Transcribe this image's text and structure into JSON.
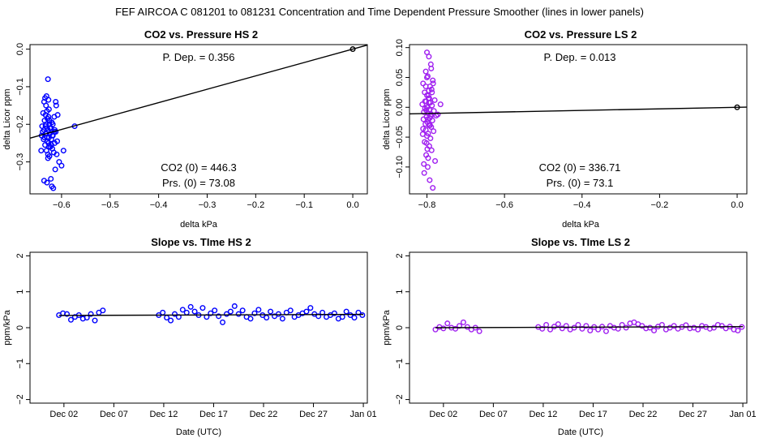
{
  "suptitle": "FEF   AIRCOA C   081201 to 081231   Concentration and Time Dependent Pressure Smoother (lines in lower panels)",
  "colors": {
    "hs": "#0000ff",
    "ls": "#a020f0",
    "axis": "#000000",
    "line": "#000000"
  },
  "chart_data": [
    {
      "id": "p1",
      "type": "scatter",
      "title": "CO2 vs. Pressure HS 2",
      "xlabel": "delta kPa",
      "ylabel": "delta Licor ppm",
      "xlim": [
        -0.665,
        0.03
      ],
      "ylim": [
        -0.385,
        0.012
      ],
      "xticks": [
        -0.6,
        -0.5,
        -0.4,
        -0.3,
        -0.2,
        -0.1,
        0.0
      ],
      "xtick_labels": [
        "−0.6",
        "−0.5",
        "−0.4",
        "−0.3",
        "−0.2",
        "−0.1",
        "0.0"
      ],
      "yticks": [
        -0.3,
        -0.2,
        -0.1,
        0.0
      ],
      "ytick_labels": [
        "−0.3",
        "−0.2",
        "−0.1",
        "0.0"
      ],
      "annotations": {
        "pdep": "P. Dep. =  0.356",
        "co2_0": "CO2 (0) =  446.3",
        "prs_0": "Prs. (0) = 73.08"
      },
      "fit_line": {
        "x": [
          -0.665,
          0.03
        ],
        "y": [
          -0.2367,
          0.0107
        ]
      },
      "ref_point": {
        "x": 0.0,
        "y": 0.0
      },
      "series_color": "hs",
      "points": {
        "x": [
          -0.628,
          -0.631,
          -0.634,
          -0.636,
          -0.632,
          -0.626,
          -0.63,
          -0.638,
          -0.633,
          -0.627,
          -0.629,
          -0.635,
          -0.62,
          -0.618,
          -0.625,
          -0.64,
          -0.622,
          -0.63,
          -0.628,
          -0.636,
          -0.615,
          -0.612,
          -0.624,
          -0.633,
          -0.641,
          -0.618,
          -0.626,
          -0.63,
          -0.621,
          -0.637,
          -0.609,
          -0.614,
          -0.627,
          -0.634,
          -0.623,
          -0.619,
          -0.631,
          -0.642,
          -0.616,
          -0.61,
          -0.625,
          -0.628,
          -0.605,
          -0.6,
          -0.613,
          -0.622,
          -0.636,
          -0.63,
          -0.62,
          -0.617,
          -0.632,
          -0.624,
          -0.611,
          -0.627,
          -0.639,
          -0.615,
          -0.626,
          -0.619,
          -0.629,
          -0.633,
          -0.612,
          -0.608,
          -0.573,
          -0.596,
          -0.625,
          -0.614,
          -0.631,
          -0.621,
          -0.635,
          -0.628
        ],
        "y": [
          -0.08,
          -0.125,
          -0.13,
          -0.14,
          -0.15,
          -0.16,
          -0.165,
          -0.17,
          -0.175,
          -0.18,
          -0.185,
          -0.19,
          -0.195,
          -0.2,
          -0.2,
          -0.205,
          -0.21,
          -0.21,
          -0.215,
          -0.215,
          -0.22,
          -0.22,
          -0.225,
          -0.225,
          -0.23,
          -0.23,
          -0.235,
          -0.235,
          -0.24,
          -0.24,
          -0.245,
          -0.25,
          -0.25,
          -0.255,
          -0.26,
          -0.265,
          -0.27,
          -0.27,
          -0.275,
          -0.28,
          -0.285,
          -0.29,
          -0.3,
          -0.31,
          -0.32,
          -0.345,
          -0.35,
          -0.355,
          -0.365,
          -0.37,
          -0.2,
          -0.21,
          -0.15,
          -0.135,
          -0.22,
          -0.18,
          -0.26,
          -0.23,
          -0.245,
          -0.205,
          -0.14,
          -0.175,
          -0.205,
          -0.27,
          -0.19,
          -0.215,
          -0.225,
          -0.255,
          -0.235,
          -0.28
        ]
      }
    },
    {
      "id": "p2",
      "type": "scatter",
      "title": "CO2 vs. Pressure LS 2",
      "xlabel": "delta kPa",
      "ylabel": "delta Licor ppm",
      "xlim": [
        -0.845,
        0.025
      ],
      "ylim": [
        -0.145,
        0.105
      ],
      "xticks": [
        -0.8,
        -0.6,
        -0.4,
        -0.2,
        0.0
      ],
      "xtick_labels": [
        "−0.8",
        "−0.6",
        "−0.4",
        "−0.2",
        "0.0"
      ],
      "yticks": [
        -0.1,
        -0.05,
        0.0,
        0.05,
        0.1
      ],
      "ytick_labels": [
        "−0.10",
        "−0.05",
        "0.00",
        "0.05",
        "0.10"
      ],
      "annotations": {
        "pdep": "P. Dep. =  0.013",
        "co2_0": "CO2 (0) =  336.71",
        "prs_0": "Prs. (0) = 73.1"
      },
      "fit_line": {
        "x": [
          -0.845,
          0.025
        ],
        "y": [
          -0.011,
          0.0003
        ]
      },
      "ref_point": {
        "x": 0.0,
        "y": 0.0
      },
      "series_color": "ls",
      "points": {
        "x": [
          -0.8,
          -0.795,
          -0.79,
          -0.803,
          -0.798,
          -0.785,
          -0.81,
          -0.792,
          -0.788,
          -0.806,
          -0.8,
          -0.796,
          -0.78,
          -0.802,
          -0.791,
          -0.812,
          -0.787,
          -0.799,
          -0.805,
          -0.794,
          -0.782,
          -0.808,
          -0.797,
          -0.79,
          -0.776,
          -0.801,
          -0.793,
          -0.809,
          -0.786,
          -0.799,
          -0.804,
          -0.795,
          -0.789,
          -0.81,
          -0.783,
          -0.797,
          -0.8,
          -0.791,
          -0.806,
          -0.794,
          -0.788,
          -0.802,
          -0.779,
          -0.798,
          -0.807,
          -0.793,
          -0.785,
          -0.8,
          -0.803,
          -0.796,
          -0.79,
          -0.811,
          -0.799,
          -0.787,
          -0.795,
          -0.802,
          -0.792,
          -0.805,
          -0.798,
          -0.784,
          -0.801,
          -0.794,
          -0.808,
          -0.789,
          -0.797,
          -0.8,
          -0.765,
          -0.772,
          -0.795,
          -0.803
        ],
        "y": [
          0.092,
          0.085,
          0.072,
          0.06,
          0.052,
          0.045,
          0.04,
          0.035,
          0.03,
          0.025,
          0.02,
          0.015,
          0.012,
          0.01,
          0.008,
          0.005,
          0.003,
          0.0,
          -0.002,
          -0.004,
          -0.006,
          -0.008,
          -0.01,
          -0.012,
          -0.014,
          -0.016,
          -0.018,
          -0.02,
          -0.022,
          -0.025,
          -0.028,
          -0.03,
          -0.033,
          -0.036,
          -0.04,
          -0.044,
          -0.048,
          -0.052,
          -0.058,
          -0.065,
          -0.072,
          -0.08,
          -0.09,
          -0.1,
          -0.11,
          -0.122,
          -0.135,
          0.05,
          0.035,
          0.02,
          -0.015,
          -0.045,
          -0.07,
          0.025,
          0.008,
          -0.005,
          -0.03,
          0.01,
          -0.02,
          0.04,
          -0.06,
          0.015,
          -0.095,
          0.065,
          -0.085,
          0.0,
          0.005,
          -0.012,
          0.028,
          -0.038
        ]
      }
    },
    {
      "id": "p3",
      "type": "scatter",
      "title": "Slope vs. TIme HS 2",
      "xlabel": "Date (UTC)",
      "ylabel": "ppm/kPa",
      "xlim": [
        -2.4,
        31.4
      ],
      "ylim": [
        -2.1,
        2.1
      ],
      "xticks": [
        1,
        6,
        11,
        16,
        21,
        26,
        31
      ],
      "xtick_labels": [
        "Dec 02",
        "Dec 07",
        "Dec 12",
        "Dec 17",
        "Dec 22",
        "Dec 27",
        "Jan 01"
      ],
      "yticks": [
        -2,
        -1,
        0,
        1,
        2
      ],
      "ytick_labels": [
        "−2",
        "−1",
        "0",
        "1",
        "2"
      ],
      "smoother_line": {
        "x": [
          0.5,
          31.0
        ],
        "y": [
          0.34,
          0.37
        ]
      },
      "series_color": "hs",
      "points": {
        "x": [
          0.5,
          0.9,
          1.3,
          1.7,
          2.1,
          2.5,
          2.9,
          3.3,
          3.7,
          4.1,
          4.5,
          4.9,
          10.5,
          10.9,
          11.3,
          11.7,
          12.1,
          12.5,
          12.9,
          13.3,
          13.7,
          14.1,
          14.5,
          14.9,
          15.3,
          15.7,
          16.1,
          16.5,
          16.9,
          17.3,
          17.7,
          18.1,
          18.5,
          18.9,
          19.3,
          19.7,
          20.1,
          20.5,
          20.9,
          21.3,
          21.7,
          22.1,
          22.5,
          22.9,
          23.3,
          23.7,
          24.1,
          24.5,
          24.9,
          25.3,
          25.7,
          26.1,
          26.5,
          26.9,
          27.3,
          27.7,
          28.1,
          28.5,
          28.9,
          29.3,
          29.7,
          30.1,
          30.5,
          30.9
        ],
        "y": [
          0.35,
          0.4,
          0.38,
          0.22,
          0.3,
          0.35,
          0.25,
          0.28,
          0.38,
          0.2,
          0.42,
          0.48,
          0.35,
          0.42,
          0.28,
          0.2,
          0.38,
          0.3,
          0.5,
          0.42,
          0.58,
          0.45,
          0.35,
          0.55,
          0.3,
          0.4,
          0.48,
          0.32,
          0.15,
          0.38,
          0.45,
          0.6,
          0.38,
          0.48,
          0.3,
          0.25,
          0.4,
          0.5,
          0.35,
          0.28,
          0.45,
          0.32,
          0.38,
          0.25,
          0.42,
          0.48,
          0.3,
          0.35,
          0.4,
          0.45,
          0.55,
          0.38,
          0.32,
          0.42,
          0.3,
          0.35,
          0.4,
          0.25,
          0.3,
          0.45,
          0.35,
          0.28,
          0.42,
          0.35
        ]
      }
    },
    {
      "id": "p4",
      "type": "scatter",
      "title": "Slope vs. TIme LS 2",
      "xlabel": "Date (UTC)",
      "ylabel": "ppm/kPa",
      "xlim": [
        -2.4,
        31.4
      ],
      "ylim": [
        -2.1,
        2.1
      ],
      "xticks": [
        1,
        6,
        11,
        16,
        21,
        26,
        31
      ],
      "xtick_labels": [
        "Dec 02",
        "Dec 07",
        "Dec 12",
        "Dec 17",
        "Dec 22",
        "Dec 27",
        "Jan 01"
      ],
      "yticks": [
        -2,
        -1,
        0,
        1,
        2
      ],
      "ytick_labels": [
        "−2",
        "−1",
        "0",
        "1",
        "2"
      ],
      "smoother_line": {
        "x": [
          0.2,
          31.0
        ],
        "y": [
          0.0,
          0.03
        ]
      },
      "series_color": "ls",
      "points": {
        "x": [
          0.2,
          0.6,
          1.0,
          1.4,
          1.8,
          2.2,
          2.6,
          3.0,
          3.4,
          3.8,
          4.2,
          4.6,
          10.5,
          10.9,
          11.3,
          11.7,
          12.1,
          12.5,
          12.9,
          13.3,
          13.7,
          14.1,
          14.5,
          14.9,
          15.3,
          15.7,
          16.1,
          16.5,
          16.9,
          17.3,
          17.7,
          18.1,
          18.5,
          18.9,
          19.3,
          19.7,
          20.1,
          20.5,
          20.9,
          21.3,
          21.7,
          22.1,
          22.5,
          22.9,
          23.3,
          23.7,
          24.1,
          24.5,
          24.9,
          25.3,
          25.7,
          26.1,
          26.5,
          26.9,
          27.3,
          27.7,
          28.1,
          28.5,
          28.9,
          29.3,
          29.7,
          30.1,
          30.5,
          30.9
        ],
        "y": [
          -0.05,
          0.02,
          -0.02,
          0.12,
          0.0,
          -0.03,
          0.05,
          0.15,
          0.02,
          -0.05,
          0.0,
          -0.1,
          0.02,
          -0.03,
          0.08,
          -0.05,
          0.03,
          0.1,
          -0.02,
          0.05,
          -0.05,
          0.0,
          0.08,
          -0.03,
          0.05,
          -0.08,
          0.02,
          -0.05,
          0.03,
          -0.1,
          0.05,
          0.0,
          -0.03,
          0.08,
          0.0,
          0.12,
          0.15,
          0.1,
          0.05,
          -0.02,
          0.0,
          -0.08,
          0.03,
          0.08,
          -0.05,
          0.0,
          0.05,
          -0.03,
          0.02,
          0.07,
          -0.02,
          0.0,
          -0.05,
          0.05,
          0.02,
          -0.03,
          0.0,
          0.08,
          0.05,
          -0.02,
          0.03,
          -0.05,
          -0.08,
          0.02
        ]
      }
    }
  ]
}
